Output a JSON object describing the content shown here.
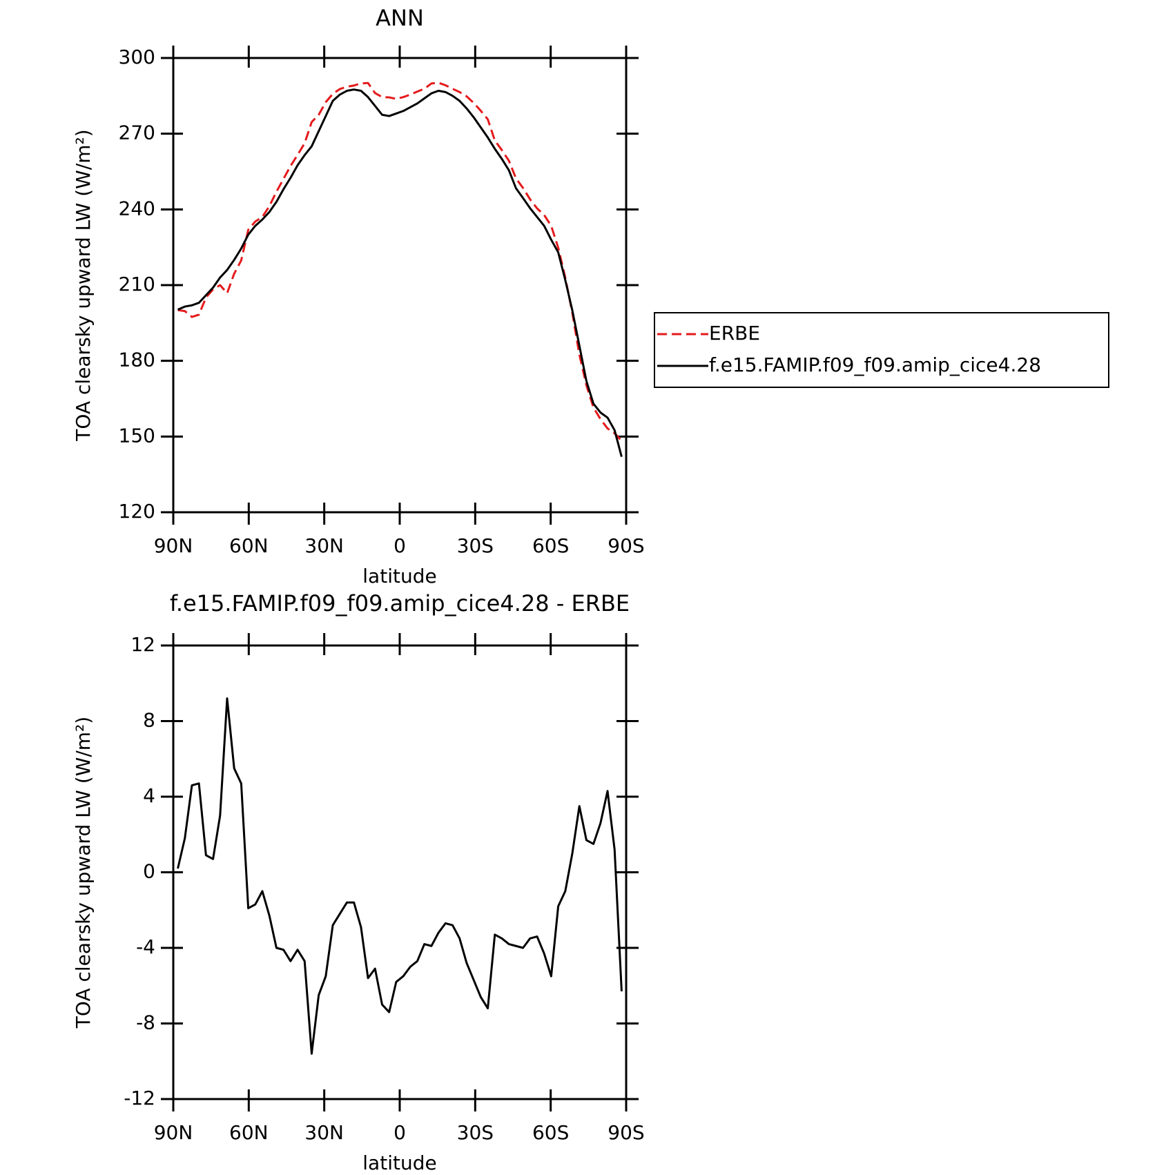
{
  "chart_data": [
    {
      "type": "line",
      "title": "ANN",
      "xlabel": "latitude",
      "ylabel": "TOA clearsky upward LW (W/m²)",
      "x": [
        88.2,
        85.4,
        82.6,
        79.8,
        77,
        74.2,
        71.4,
        68.6,
        65.8,
        63,
        60.2,
        57.4,
        54.6,
        51.8,
        49,
        46.2,
        43.4,
        40.6,
        37.8,
        35,
        32.2,
        29.4,
        26.6,
        23.8,
        21,
        18.2,
        15.4,
        12.6,
        9.8,
        7,
        4.2,
        1.4,
        -1.4,
        -4.2,
        -7,
        -9.8,
        -12.6,
        -15.4,
        -18.2,
        -21,
        -23.8,
        -26.6,
        -29.4,
        -32.2,
        -35,
        -37.8,
        -40.6,
        -43.4,
        -46.2,
        -49,
        -51.8,
        -54.6,
        -57.4,
        -60.2,
        -63,
        -65.8,
        -68.6,
        -71.4,
        -74.2,
        -77,
        -79.8,
        -82.6,
        -85.4,
        -88.2
      ],
      "series": [
        {
          "name": "ERBE",
          "color": "#e41a1c",
          "line_style": "dashed",
          "values": [
            200.1,
            199.7,
            197.4,
            198.3,
            205.1,
            208.3,
            210.0,
            206.8,
            214.5,
            219.8,
            231.9,
            235.2,
            237.0,
            241.3,
            247.0,
            252.1,
            257.2,
            261.6,
            266.2,
            274.6,
            277.5,
            282.5,
            285.8,
            287.7,
            288.6,
            289.1,
            289.9,
            290.1,
            286.1,
            284.5,
            284.4,
            283.8,
            284.5,
            285.5,
            286.7,
            287.8,
            289.9,
            290.2,
            289.2,
            287.8,
            286.5,
            284.8,
            282.2,
            279.1,
            275.7,
            267.3,
            263.5,
            259.3,
            252.3,
            248.5,
            244.0,
            240.4,
            237.8,
            233.5,
            224.8,
            213.0,
            199.0,
            182.5,
            170.3,
            161.5,
            156.9,
            153.2,
            151.3,
            148.3
          ]
        },
        {
          "name": "f.e15.FAMIP.f09_f09.amip_cice4.28",
          "color": "#000000",
          "line_style": "solid",
          "values": [
            200.3,
            201.5,
            202,
            203,
            206,
            209,
            213,
            216,
            220,
            224.5,
            230,
            233.5,
            236,
            239,
            243,
            248,
            252.5,
            257.5,
            261.5,
            265,
            271,
            277,
            283,
            285.5,
            287,
            287.5,
            287,
            284.5,
            281,
            277.5,
            277,
            278,
            279,
            280.5,
            282,
            284,
            286,
            287,
            286.5,
            285,
            283,
            280,
            276.5,
            272.5,
            268.5,
            264,
            260,
            255.5,
            248.4,
            244.5,
            240.5,
            237,
            233.5,
            228,
            223,
            212,
            200,
            186,
            172,
            163,
            159.5,
            157.5,
            152.5,
            142
          ]
        }
      ],
      "xlim": [
        90,
        -90
      ],
      "xticks": [
        {
          "value": 90,
          "label": "90N"
        },
        {
          "value": 60,
          "label": "60N"
        },
        {
          "value": 30,
          "label": "30N"
        },
        0,
        {
          "value": -30,
          "label": "30S"
        },
        {
          "value": -60,
          "label": "60S"
        },
        {
          "value": -90,
          "label": "90S"
        }
      ],
      "ylim": [
        120,
        300
      ],
      "yticks": [
        120,
        150,
        180,
        210,
        240,
        270,
        300
      ],
      "legend_position": "right"
    },
    {
      "type": "line",
      "title": "f.e15.FAMIP.f09_f09.amip_cice4.28 - ERBE",
      "xlabel": "latitude",
      "ylabel": "TOA clearsky upward LW (W/m²)",
      "x": [
        88.2,
        85.4,
        82.6,
        79.8,
        77,
        74.2,
        71.4,
        68.6,
        65.8,
        63,
        60.2,
        57.4,
        54.6,
        51.8,
        49,
        46.2,
        43.4,
        40.6,
        37.8,
        35,
        32.2,
        29.4,
        26.6,
        23.8,
        21,
        18.2,
        15.4,
        12.6,
        9.8,
        7,
        4.2,
        1.4,
        -1.4,
        -4.2,
        -7,
        -9.8,
        -12.6,
        -15.4,
        -18.2,
        -21,
        -23.8,
        -26.6,
        -29.4,
        -32.2,
        -35,
        -37.8,
        -40.6,
        -43.4,
        -46.2,
        -49,
        -51.8,
        -54.6,
        -57.4,
        -60.2,
        -63,
        -65.8,
        -68.6,
        -71.4,
        -74.2,
        -77,
        -79.8,
        -82.6,
        -85.4,
        -88.2
      ],
      "series": [
        {
          "color": "#000000",
          "line_style": "solid",
          "values": [
            0.2,
            1.8,
            4.6,
            4.7,
            0.9,
            0.7,
            3.0,
            9.2,
            5.5,
            4.7,
            -1.9,
            -1.7,
            -1.0,
            -2.3,
            -4.0,
            -4.1,
            -4.7,
            -4.1,
            -4.7,
            -9.6,
            -6.5,
            -5.5,
            -2.8,
            -2.2,
            -1.6,
            -1.6,
            -2.9,
            -5.6,
            -5.1,
            -7.0,
            -7.4,
            -5.8,
            -5.5,
            -5.0,
            -4.7,
            -3.8,
            -3.9,
            -3.2,
            -2.7,
            -2.8,
            -3.5,
            -4.8,
            -5.7,
            -6.6,
            -7.2,
            -3.3,
            -3.5,
            -3.8,
            -3.9,
            -4.0,
            -3.5,
            -3.4,
            -4.3,
            -5.5,
            -1.8,
            -1.0,
            1.0,
            3.5,
            1.7,
            1.5,
            2.6,
            4.3,
            1.2,
            -6.3
          ]
        }
      ],
      "xlim": [
        90,
        -90
      ],
      "xticks": [
        {
          "value": 90,
          "label": "90N"
        },
        {
          "value": 60,
          "label": "60N"
        },
        {
          "value": 30,
          "label": "30N"
        },
        0,
        {
          "value": -30,
          "label": "30S"
        },
        {
          "value": -60,
          "label": "60S"
        },
        {
          "value": -90,
          "label": "90S"
        }
      ],
      "ylim": [
        -12,
        12
      ],
      "yticks": [
        -12,
        -8,
        -4,
        0,
        4,
        8,
        12
      ]
    }
  ]
}
